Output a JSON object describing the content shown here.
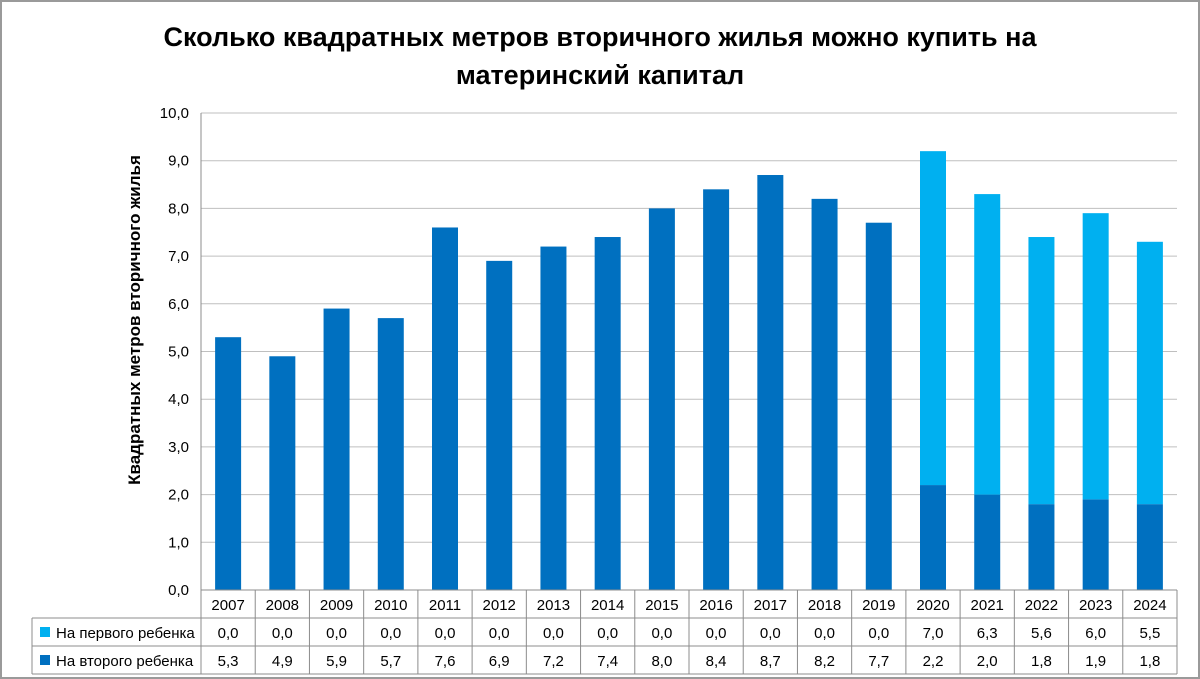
{
  "chart_data": {
    "type": "bar",
    "stacked": true,
    "title": "Сколько квадратных метров вторичного жилья можно купить на материнский капитал",
    "title_lines": [
      "Сколько квадратных метров вторичного жилья можно купить на",
      "материнский капитал"
    ],
    "xlabel": "",
    "ylabel": "Квадратных метров вторичного жилья",
    "ylim": [
      0,
      10
    ],
    "ytick_values": [
      0,
      1,
      2,
      3,
      4,
      5,
      6,
      7,
      8,
      9,
      10
    ],
    "ytick_labels": [
      "0,0",
      "1,0",
      "2,0",
      "3,0",
      "4,0",
      "5,0",
      "6,0",
      "7,0",
      "8,0",
      "9,0",
      "10,0"
    ],
    "categories": [
      "2007",
      "2008",
      "2009",
      "2010",
      "2011",
      "2012",
      "2013",
      "2014",
      "2015",
      "2016",
      "2017",
      "2018",
      "2019",
      "2020",
      "2021",
      "2022",
      "2023",
      "2024"
    ],
    "grid": true,
    "legend_placement": "data-table",
    "series": [
      {
        "name": "На второго ребенка",
        "color": "#0070C0",
        "values": [
          5.3,
          4.9,
          5.9,
          5.7,
          7.6,
          6.9,
          7.2,
          7.4,
          8.0,
          8.4,
          8.7,
          8.2,
          7.7,
          2.2,
          2.0,
          1.8,
          1.9,
          1.8
        ],
        "labels": [
          "5,3",
          "4,9",
          "5,9",
          "5,7",
          "7,6",
          "6,9",
          "7,2",
          "7,4",
          "8,0",
          "8,4",
          "8,7",
          "8,2",
          "7,7",
          "2,2",
          "2,0",
          "1,8",
          "1,9",
          "1,8"
        ]
      },
      {
        "name": "На первого ребенка",
        "color": "#00B0F0",
        "values": [
          0.0,
          0.0,
          0.0,
          0.0,
          0.0,
          0.0,
          0.0,
          0.0,
          0.0,
          0.0,
          0.0,
          0.0,
          0.0,
          7.0,
          6.3,
          5.6,
          6.0,
          5.5
        ],
        "labels": [
          "0,0",
          "0,0",
          "0,0",
          "0,0",
          "0,0",
          "0,0",
          "0,0",
          "0,0",
          "0,0",
          "0,0",
          "0,0",
          "0,0",
          "0,0",
          "7,0",
          "6,3",
          "5,6",
          "6,0",
          "5,5"
        ]
      }
    ],
    "table_rows": [
      {
        "series_index": 1,
        "legend": "На первого ребенка"
      },
      {
        "series_index": 0,
        "legend": "На второго ребенка"
      }
    ]
  }
}
